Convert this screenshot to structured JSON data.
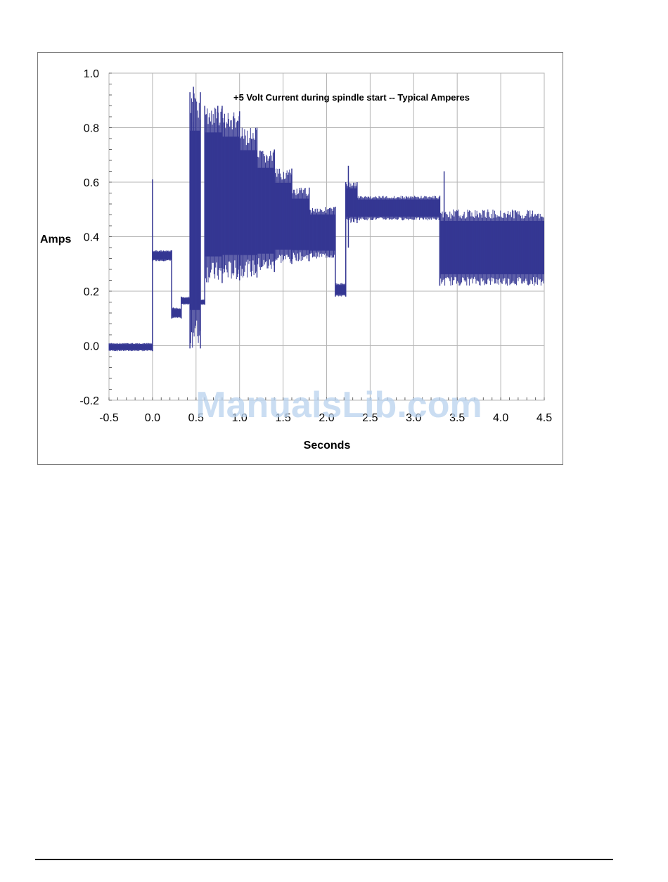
{
  "watermark": "ManualsLib.com",
  "colors": {
    "series": "#353793",
    "grid": "#b5b5b5",
    "frame": "#7a7a7a",
    "watermark": "#b9d2ee"
  },
  "chart_data": {
    "type": "line",
    "title": "+5 Volt Current during spindle start -- Typical Amperes",
    "xlabel": "Seconds",
    "ylabel": "Amps",
    "xlim": [
      -0.5,
      4.5
    ],
    "ylim": [
      -0.2,
      1.0
    ],
    "x_ticks": [
      "-0.5",
      "0.0",
      "0.5",
      "1.0",
      "1.5",
      "2.0",
      "2.5",
      "3.0",
      "3.5",
      "4.0",
      "4.5"
    ],
    "y_ticks": [
      "1.0",
      "0.8",
      "0.6",
      "0.4",
      "0.2",
      "0.0",
      "-0.2"
    ],
    "grid": true,
    "legend": "none",
    "series": [
      {
        "band_segments_min_max": [
          {
            "x": [
              -0.5,
              0.0
            ],
            "min": -0.02,
            "max": 0.01
          },
          {
            "x": [
              0.0,
              0.22
            ],
            "min": 0.31,
            "max": 0.35
          },
          {
            "x": [
              0.22,
              0.33
            ],
            "min": 0.1,
            "max": 0.14
          },
          {
            "x": [
              0.33,
              0.43
            ],
            "min": 0.15,
            "max": 0.18
          },
          {
            "x": [
              0.43,
              0.55
            ],
            "min": -0.01,
            "max": 0.93
          },
          {
            "x": [
              0.55,
              0.6
            ],
            "min": 0.15,
            "max": 0.17
          },
          {
            "x": [
              0.6,
              0.8
            ],
            "min": 0.23,
            "max": 0.88
          },
          {
            "x": [
              0.8,
              1.0
            ],
            "min": 0.24,
            "max": 0.86
          },
          {
            "x": [
              1.0,
              1.2
            ],
            "min": 0.25,
            "max": 0.8
          },
          {
            "x": [
              1.2,
              1.4
            ],
            "min": 0.27,
            "max": 0.72
          },
          {
            "x": [
              1.4,
              1.6
            ],
            "min": 0.3,
            "max": 0.65
          },
          {
            "x": [
              1.6,
              1.8
            ],
            "min": 0.31,
            "max": 0.58
          },
          {
            "x": [
              1.8,
              2.1
            ],
            "min": 0.32,
            "max": 0.51
          },
          {
            "x": [
              2.1,
              2.22
            ],
            "min": 0.18,
            "max": 0.23
          },
          {
            "x": [
              2.22,
              2.35
            ],
            "min": 0.45,
            "max": 0.6
          },
          {
            "x": [
              2.35,
              3.3
            ],
            "min": 0.46,
            "max": 0.55
          },
          {
            "x": [
              3.3,
              4.5
            ],
            "min": 0.22,
            "max": 0.5
          }
        ],
        "spikes": [
          {
            "x": 0.0,
            "y": 0.61
          },
          {
            "x": 0.47,
            "y": 0.95
          },
          {
            "x": 0.75,
            "y": 0.88
          },
          {
            "x": 2.25,
            "y": 0.66
          },
          {
            "x": 3.35,
            "y": 0.64
          }
        ]
      }
    ]
  }
}
